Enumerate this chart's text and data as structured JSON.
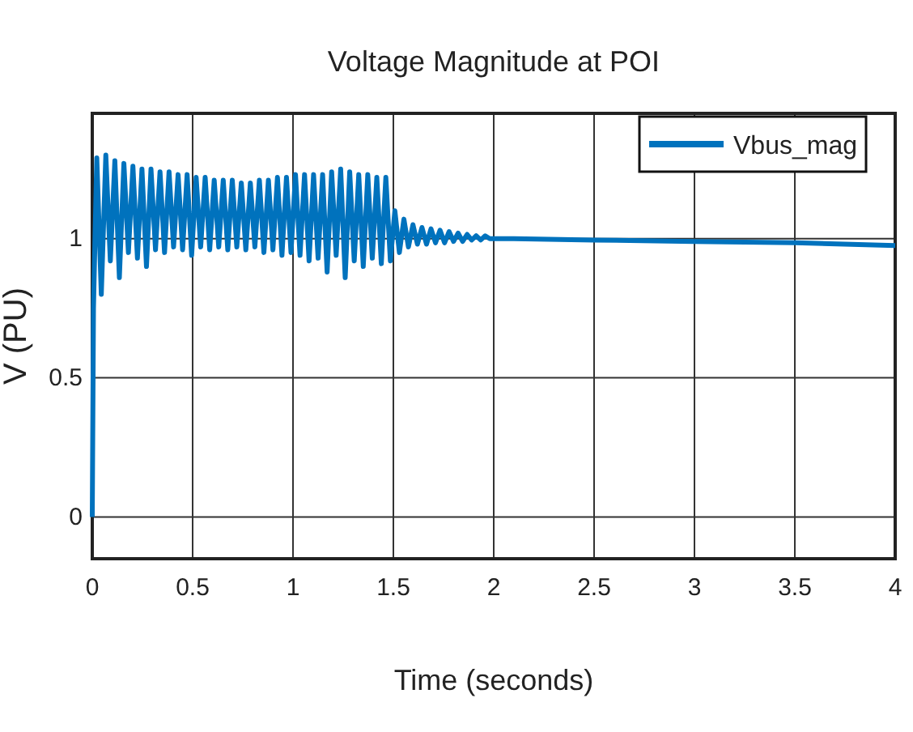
{
  "chart_data": {
    "type": "line",
    "title": "Voltage Magnitude at POI",
    "xlabel": "Time (seconds)",
    "ylabel": "V (PU)",
    "xlim": [
      0,
      4
    ],
    "xticks": [
      0,
      0.5,
      1,
      1.5,
      2,
      2.5,
      3,
      3.5,
      4
    ],
    "ylim": [
      -0.15,
      1.45
    ],
    "yticks": [
      0,
      0.5,
      1
    ],
    "grid": true,
    "legend": "top right",
    "line_style": "solid",
    "marker": "none",
    "series": [
      {
        "name": "Vbus_mag",
        "color": "#0072bd",
        "x": [
          0,
          0.006,
          0.0225,
          0.045,
          0.0675,
          0.09,
          0.1125,
          0.135,
          0.1575,
          0.18,
          0.2025,
          0.225,
          0.2475,
          0.27,
          0.2925,
          0.315,
          0.3375,
          0.36,
          0.3825,
          0.405,
          0.4275,
          0.45,
          0.4725,
          0.495,
          0.5175,
          0.54,
          0.5625,
          0.585,
          0.6075,
          0.63,
          0.6525,
          0.675,
          0.6975,
          0.72,
          0.7425,
          0.765,
          0.7875,
          0.81,
          0.8325,
          0.855,
          0.8775,
          0.9,
          0.9225,
          0.945,
          0.9675,
          0.99,
          1.0125,
          1.035,
          1.0575,
          1.08,
          1.1025,
          1.125,
          1.1475,
          1.17,
          1.1925,
          1.215,
          1.2375,
          1.26,
          1.2825,
          1.305,
          1.3275,
          1.35,
          1.3725,
          1.395,
          1.4175,
          1.44,
          1.4625,
          1.485,
          1.5075,
          1.53,
          1.5525,
          1.575,
          1.5975,
          1.62,
          1.6425,
          1.665,
          1.6875,
          1.71,
          1.7325,
          1.755,
          1.7775,
          1.8,
          1.8225,
          1.845,
          1.8675,
          1.89,
          1.9125,
          1.935,
          1.9575,
          1.98,
          2.1,
          2.5,
          3.0,
          3.5,
          4.0
        ],
        "values": [
          0,
          0.75,
          1.29,
          0.8,
          1.3,
          0.92,
          1.28,
          0.86,
          1.27,
          0.95,
          1.26,
          0.93,
          1.25,
          0.9,
          1.25,
          0.96,
          1.24,
          0.95,
          1.24,
          0.97,
          1.23,
          0.96,
          1.23,
          0.94,
          1.22,
          0.97,
          1.22,
          0.96,
          1.21,
          0.97,
          1.21,
          0.96,
          1.21,
          0.97,
          1.2,
          0.96,
          1.2,
          0.97,
          1.21,
          0.95,
          1.21,
          0.96,
          1.22,
          0.94,
          1.22,
          0.95,
          1.23,
          0.94,
          1.23,
          0.92,
          1.23,
          0.93,
          1.23,
          0.88,
          1.24,
          0.94,
          1.25,
          0.86,
          1.24,
          0.92,
          1.23,
          0.9,
          1.23,
          0.93,
          1.22,
          0.91,
          1.22,
          0.92,
          1.1,
          0.95,
          1.07,
          0.97,
          1.05,
          0.98,
          1.04,
          0.98,
          1.035,
          0.985,
          1.03,
          0.985,
          1.025,
          0.99,
          1.02,
          0.99,
          1.015,
          0.995,
          1.01,
          0.995,
          1.01,
          1.0,
          1.0,
          0.995,
          0.99,
          0.985,
          0.975
        ]
      }
    ]
  }
}
